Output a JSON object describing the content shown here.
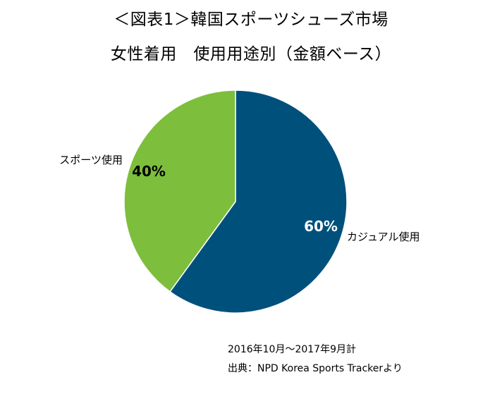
{
  "title": {
    "line1": "＜図表1＞韓国スポーツシューズ市場",
    "line2": "女性着用　使用用途別（金額ベース）"
  },
  "notes": {
    "period": "2016年10月～2017年9月計",
    "source": "出典：NPD Korea Sports Trackerより"
  },
  "chart_data": {
    "type": "pie",
    "title": "＜図表1＞韓国スポーツシューズ市場 女性着用　使用用途別（金額ベース）",
    "slices": [
      {
        "category": "カジュアル使用",
        "value": 60,
        "label": "60%",
        "color": "#00507C",
        "label_color": "#ffffff"
      },
      {
        "category": "スポーツ使用",
        "value": 40,
        "label": "40%",
        "color": "#7DBE3C",
        "label_color": "#000000"
      }
    ],
    "start_angle_deg": 0,
    "direction": "clockwise",
    "legend": "none"
  }
}
